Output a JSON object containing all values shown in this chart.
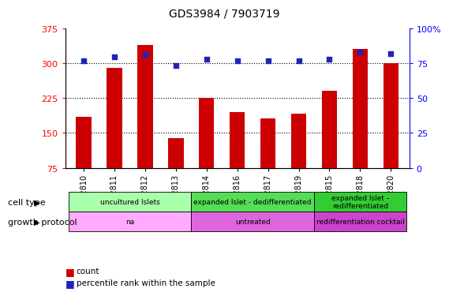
{
  "title": "GDS3984 / 7903719",
  "samples": [
    "GSM762810",
    "GSM762811",
    "GSM762812",
    "GSM762813",
    "GSM762814",
    "GSM762816",
    "GSM762817",
    "GSM762819",
    "GSM762815",
    "GSM762818",
    "GSM762820"
  ],
  "counts": [
    185,
    290,
    340,
    138,
    225,
    195,
    182,
    192,
    240,
    330,
    300
  ],
  "percentiles": [
    76.5,
    79.5,
    81.5,
    73.5,
    78,
    77,
    77,
    77,
    78,
    83,
    82
  ],
  "ylim_left": [
    75,
    375
  ],
  "ylim_right": [
    0,
    100
  ],
  "yticks_left": [
    75,
    150,
    225,
    300,
    375
  ],
  "yticks_right": [
    0,
    25,
    50,
    75,
    100
  ],
  "bar_color": "#cc0000",
  "dot_color": "#2222bb",
  "bg_color": "#ffffff",
  "cell_type_groups": [
    {
      "label": "uncultured Islets",
      "start": 0,
      "end": 4,
      "color": "#aaffaa"
    },
    {
      "label": "expanded Islet - dedifferentiated",
      "start": 4,
      "end": 8,
      "color": "#55dd55"
    },
    {
      "label": "expanded Islet -\nredifferentiated",
      "start": 8,
      "end": 11,
      "color": "#33cc33"
    }
  ],
  "growth_protocol_groups": [
    {
      "label": "na",
      "start": 0,
      "end": 4,
      "color": "#ffaaff"
    },
    {
      "label": "untreated",
      "start": 4,
      "end": 8,
      "color": "#dd66dd"
    },
    {
      "label": "redifferentiation cocktail",
      "start": 8,
      "end": 11,
      "color": "#cc44cc"
    }
  ]
}
